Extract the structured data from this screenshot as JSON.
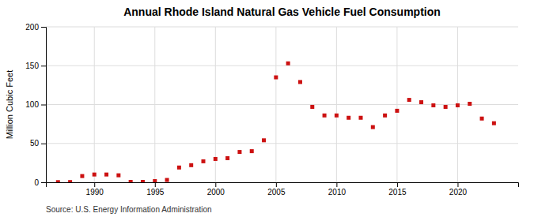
{
  "chart_data": {
    "type": "scatter",
    "title": "Annual Rhode Island Natural Gas Vehicle Fuel Consumption",
    "ylabel": "Million Cubic Feet",
    "source": "Source: U.S. Energy Information Administration",
    "x": [
      1987,
      1988,
      1989,
      1990,
      1991,
      1992,
      1993,
      1994,
      1995,
      1996,
      1997,
      1998,
      1999,
      2000,
      2001,
      2002,
      2003,
      2004,
      2005,
      2006,
      2007,
      2008,
      2009,
      2010,
      2011,
      2012,
      2013,
      2014,
      2015,
      2016,
      2017,
      2018,
      2019,
      2020,
      2021,
      2022,
      2023
    ],
    "values": [
      0.2,
      0.3,
      8,
      10,
      10,
      9,
      0.5,
      0.5,
      1.5,
      3,
      19,
      22,
      27,
      30,
      31,
      39,
      40,
      54,
      135,
      153,
      129,
      97,
      86,
      86,
      83,
      83,
      71,
      86,
      92,
      106,
      103,
      99,
      97,
      99,
      101,
      82,
      76
    ],
    "color": "#cc1111",
    "marker": "square",
    "xlim": [
      1986,
      2025
    ],
    "ylim": [
      0,
      200
    ],
    "yticks": [
      0,
      50,
      100,
      150,
      200
    ],
    "xticks": [
      1990,
      1995,
      2000,
      2005,
      2010,
      2015,
      2020
    ],
    "grid": true
  }
}
